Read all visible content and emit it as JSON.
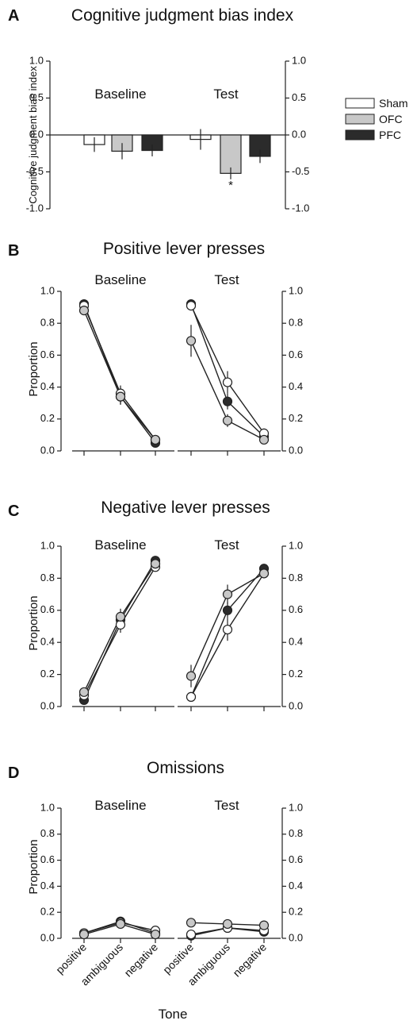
{
  "legend": {
    "items": [
      {
        "name": "Sham",
        "fill": "#ffffff"
      },
      {
        "name": "OFC",
        "fill": "#c8c8c8"
      },
      {
        "name": "PFC",
        "fill": "#2b2b2b"
      }
    ]
  },
  "colors": {
    "Sham": "#ffffff",
    "OFC": "#c8c8c8",
    "PFC": "#2b2b2b",
    "stroke": "#222222"
  },
  "x_categories": [
    "positive",
    "ambiguous",
    "negative"
  ],
  "x_title": "Tone",
  "chart_data": [
    {
      "panel": "A",
      "type": "bar",
      "title": "Cognitive judgment bias index",
      "ylabel": "Cognitive judgment bias index",
      "ylim": [
        -1.0,
        1.0
      ],
      "yticks": [
        "1.0",
        "0.5",
        "0.0",
        "-0.5",
        "-1.0"
      ],
      "ytick_values": [
        1.0,
        0.5,
        0.0,
        -0.5,
        -1.0
      ],
      "groups": [
        "Baseline",
        "Test"
      ],
      "series": [
        {
          "name": "Sham",
          "values": [
            -0.13,
            -0.06
          ],
          "errors": [
            0.1,
            0.14
          ]
        },
        {
          "name": "OFC",
          "values": [
            -0.22,
            -0.52
          ],
          "errors": [
            0.11,
            0.08
          ]
        },
        {
          "name": "PFC",
          "values": [
            -0.21,
            -0.29
          ],
          "errors": [
            0.08,
            0.09
          ]
        }
      ],
      "annotation": "*"
    },
    {
      "panel": "B",
      "type": "line",
      "title": "Positive lever presses",
      "ylabel": "Proportion",
      "ylim": [
        0,
        1.0
      ],
      "yticks": [
        "1.0",
        "0.8",
        "0.6",
        "0.4",
        "0.2",
        "0.0"
      ],
      "ytick_values": [
        1.0,
        0.8,
        0.6,
        0.4,
        0.2,
        0.0
      ],
      "groups": [
        {
          "name": "Baseline",
          "series": [
            {
              "name": "Sham",
              "values": [
                0.91,
                0.36,
                0.07
              ],
              "errors": [
                0.02,
                0.05,
                0.02
              ]
            },
            {
              "name": "OFC",
              "values": [
                0.88,
                0.34,
                0.07
              ],
              "errors": [
                0.02,
                0.05,
                0.02
              ]
            },
            {
              "name": "PFC",
              "values": [
                0.92,
                0.34,
                0.05
              ],
              "errors": [
                0.02,
                0.05,
                0.02
              ]
            }
          ]
        },
        {
          "name": "Test",
          "series": [
            {
              "name": "Sham",
              "values": [
                0.91,
                0.43,
                0.11
              ],
              "errors": [
                0.03,
                0.07,
                0.03
              ]
            },
            {
              "name": "OFC",
              "values": [
                0.69,
                0.19,
                0.07
              ],
              "errors": [
                0.1,
                0.04,
                0.02
              ]
            },
            {
              "name": "PFC",
              "values": [
                0.92,
                0.31,
                0.09
              ],
              "errors": [
                0.02,
                0.05,
                0.02
              ]
            }
          ]
        }
      ]
    },
    {
      "panel": "C",
      "type": "line",
      "title": "Negative lever presses",
      "ylabel": "Proportion",
      "ylim": [
        0,
        1.0
      ],
      "yticks": [
        "1.0",
        "0.8",
        "0.6",
        "0.4",
        "0.2",
        "0.0"
      ],
      "ytick_values": [
        1.0,
        0.8,
        0.6,
        0.4,
        0.2,
        0.0
      ],
      "groups": [
        {
          "name": "Baseline",
          "series": [
            {
              "name": "Sham",
              "values": [
                0.07,
                0.51,
                0.87
              ],
              "errors": [
                0.02,
                0.05,
                0.02
              ]
            },
            {
              "name": "OFC",
              "values": [
                0.09,
                0.56,
                0.89
              ],
              "errors": [
                0.02,
                0.05,
                0.02
              ]
            },
            {
              "name": "PFC",
              "values": [
                0.04,
                0.54,
                0.91
              ],
              "errors": [
                0.02,
                0.05,
                0.02
              ]
            }
          ]
        },
        {
          "name": "Test",
          "series": [
            {
              "name": "Sham",
              "values": [
                0.06,
                0.48,
                0.83
              ],
              "errors": [
                0.02,
                0.07,
                0.03
              ]
            },
            {
              "name": "OFC",
              "values": [
                0.19,
                0.7,
                0.83
              ],
              "errors": [
                0.07,
                0.06,
                0.02
              ]
            },
            {
              "name": "PFC",
              "values": [
                0.06,
                0.6,
                0.86
              ],
              "errors": [
                0.02,
                0.05,
                0.02
              ]
            }
          ]
        }
      ]
    },
    {
      "panel": "D",
      "type": "line",
      "title": "Omissions",
      "ylabel": "Proportion",
      "ylim": [
        0,
        1.0
      ],
      "yticks": [
        "1.0",
        "0.8",
        "0.6",
        "0.4",
        "0.2",
        "0.0"
      ],
      "ytick_values": [
        1.0,
        0.8,
        0.6,
        0.4,
        0.2,
        0.0
      ],
      "groups": [
        {
          "name": "Baseline",
          "series": [
            {
              "name": "Sham",
              "values": [
                0.04,
                0.12,
                0.06
              ],
              "errors": [
                0.01,
                0.02,
                0.01
              ]
            },
            {
              "name": "OFC",
              "values": [
                0.03,
                0.11,
                0.03
              ],
              "errors": [
                0.01,
                0.02,
                0.01
              ]
            },
            {
              "name": "PFC",
              "values": [
                0.04,
                0.13,
                0.04
              ],
              "errors": [
                0.01,
                0.02,
                0.01
              ]
            }
          ]
        },
        {
          "name": "Test",
          "series": [
            {
              "name": "Sham",
              "values": [
                0.03,
                0.08,
                0.06
              ],
              "errors": [
                0.01,
                0.02,
                0.01
              ]
            },
            {
              "name": "OFC",
              "values": [
                0.12,
                0.11,
                0.1
              ],
              "errors": [
                0.03,
                0.02,
                0.02
              ]
            },
            {
              "name": "PFC",
              "values": [
                0.02,
                0.08,
                0.05
              ],
              "errors": [
                0.01,
                0.02,
                0.01
              ]
            }
          ]
        }
      ]
    }
  ]
}
